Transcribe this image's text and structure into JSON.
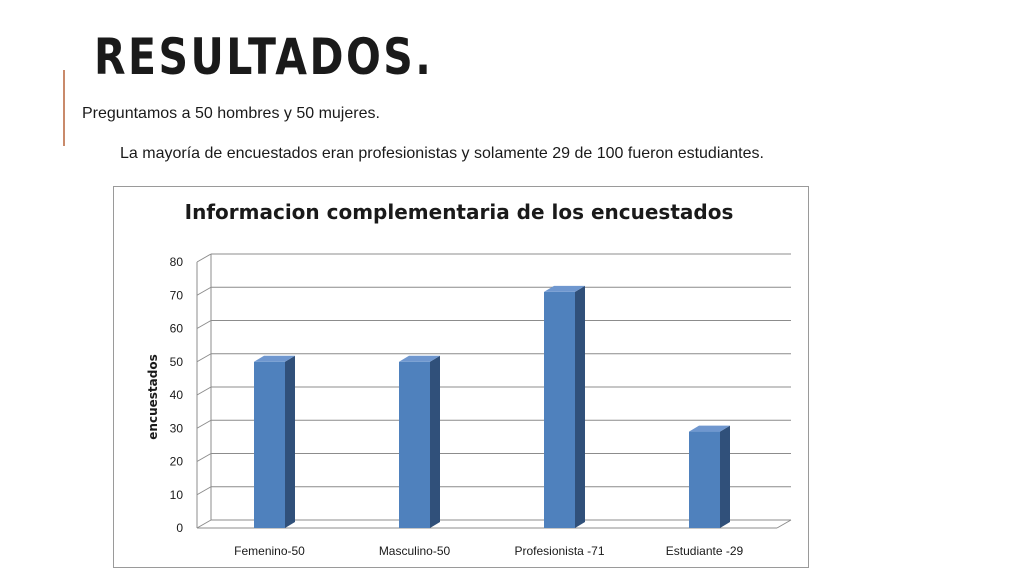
{
  "slide": {
    "title": "RESULTADOS.",
    "subtitle": "Preguntamos a 50 hombres y 50 mujeres.",
    "body": "La mayoría de encuestados eran profesionistas y solamente 29 de 100 fueron estudiantes.",
    "accent_color": "#c98a6b"
  },
  "chart_data": {
    "type": "bar",
    "style": "3d-column",
    "title": "Informacion complementaria de los encuestados",
    "xlabel": "",
    "ylabel": "encuestados",
    "categories": [
      "Femenino-50",
      "Masculino-50",
      "Profesionista -71",
      "Estudiante -29"
    ],
    "values": [
      50,
      50,
      71,
      29
    ],
    "ylim": [
      0,
      80
    ],
    "yticks": [
      0,
      10,
      20,
      30,
      40,
      50,
      60,
      70,
      80
    ],
    "grid": true,
    "legend": "none",
    "colors": {
      "bar_front": "#4f81bd",
      "bar_side": "#30507a",
      "bar_top": "#6f97cf"
    }
  }
}
